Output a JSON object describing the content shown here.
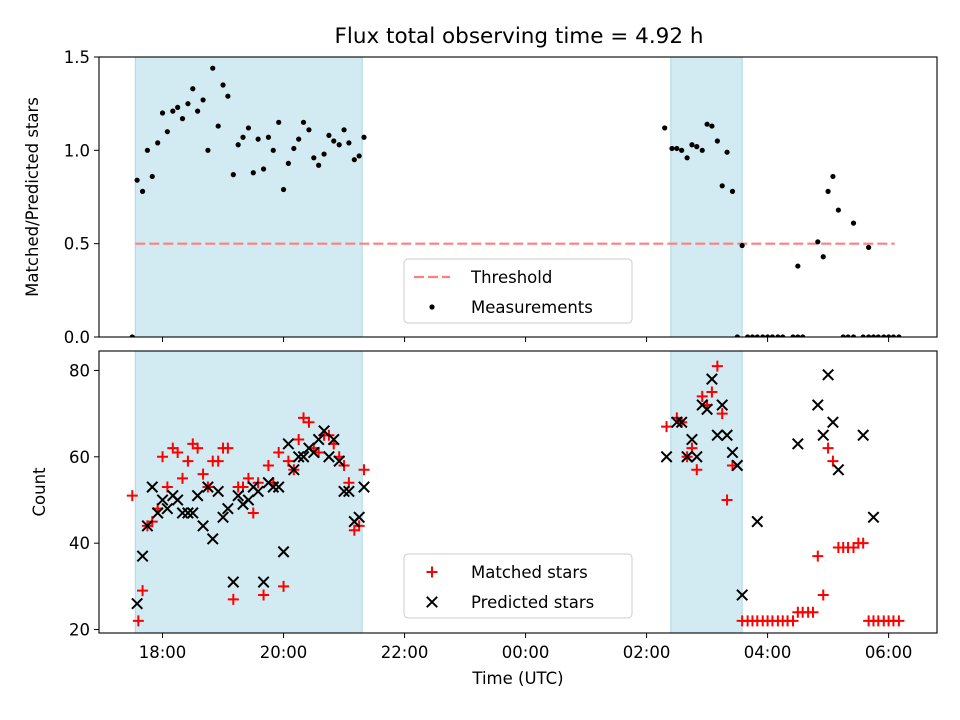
{
  "title": "Flux total observing time = 4.92 h",
  "colors": {
    "shade": "#add8e6",
    "threshold": "#ff7f7f",
    "measurement": "#000000",
    "matched": "#ff0000",
    "predicted": "#000000"
  },
  "chart_data": [
    {
      "type": "scatter",
      "ylabel": "Matched/Predicted stars",
      "xlim": [
        16.95,
        30.8
      ],
      "ylim": [
        0,
        1.5
      ],
      "yticks": [
        0.0,
        0.5,
        1.0,
        1.5
      ],
      "ytick_labels": [
        "0.0",
        "0.5",
        "1.0",
        "1.5"
      ],
      "legend": {
        "placement": "lower center",
        "entries": [
          "Threshold",
          "Measurements"
        ]
      },
      "threshold": {
        "name": "Threshold",
        "value": 0.5,
        "x_range": [
          17.55,
          30.1
        ]
      },
      "shaded_intervals": [
        [
          17.55,
          21.3
        ],
        [
          26.4,
          27.58
        ]
      ],
      "series": [
        {
          "name": "Measurements",
          "points": [
            [
              17.5,
              0.0
            ],
            [
              17.58,
              0.84
            ],
            [
              17.67,
              0.78
            ],
            [
              17.75,
              1.0
            ],
            [
              17.83,
              0.86
            ],
            [
              17.92,
              1.04
            ],
            [
              18.0,
              1.2
            ],
            [
              18.08,
              1.1
            ],
            [
              18.17,
              1.21
            ],
            [
              18.25,
              1.23
            ],
            [
              18.33,
              1.17
            ],
            [
              18.42,
              1.25
            ],
            [
              18.5,
              1.33
            ],
            [
              18.58,
              1.21
            ],
            [
              18.67,
              1.27
            ],
            [
              18.75,
              1.0
            ],
            [
              18.83,
              1.44
            ],
            [
              18.92,
              1.13
            ],
            [
              19.0,
              1.35
            ],
            [
              19.08,
              1.29
            ],
            [
              19.17,
              0.87
            ],
            [
              19.25,
              1.03
            ],
            [
              19.33,
              1.07
            ],
            [
              19.42,
              1.12
            ],
            [
              19.5,
              0.88
            ],
            [
              19.58,
              1.06
            ],
            [
              19.67,
              0.9
            ],
            [
              19.75,
              1.07
            ],
            [
              19.83,
              1.0
            ],
            [
              19.92,
              1.15
            ],
            [
              20.0,
              0.79
            ],
            [
              20.08,
              0.93
            ],
            [
              20.17,
              1.01
            ],
            [
              20.25,
              1.06
            ],
            [
              20.33,
              1.15
            ],
            [
              20.42,
              1.11
            ],
            [
              20.5,
              0.96
            ],
            [
              20.58,
              0.92
            ],
            [
              20.67,
              0.98
            ],
            [
              20.75,
              1.08
            ],
            [
              20.83,
              1.05
            ],
            [
              20.92,
              1.03
            ],
            [
              21.0,
              1.11
            ],
            [
              21.08,
              1.04
            ],
            [
              21.17,
              0.95
            ],
            [
              21.25,
              0.97
            ],
            [
              21.33,
              1.07
            ],
            [
              26.3,
              1.12
            ],
            [
              26.42,
              1.01
            ],
            [
              26.5,
              1.01
            ],
            [
              26.58,
              1.0
            ],
            [
              26.67,
              0.96
            ],
            [
              26.75,
              1.03
            ],
            [
              26.83,
              1.02
            ],
            [
              26.92,
              1.0
            ],
            [
              27.0,
              1.14
            ],
            [
              27.08,
              1.13
            ],
            [
              27.17,
              1.05
            ],
            [
              27.25,
              0.81
            ],
            [
              27.33,
              0.99
            ],
            [
              27.42,
              0.78
            ],
            [
              27.58,
              0.49
            ],
            [
              27.5,
              0.0
            ],
            [
              27.67,
              0.0
            ],
            [
              27.75,
              0.0
            ],
            [
              27.83,
              0.0
            ],
            [
              27.92,
              0.0
            ],
            [
              28.0,
              0.0
            ],
            [
              28.08,
              0.0
            ],
            [
              28.17,
              0.0
            ],
            [
              28.25,
              0.0
            ],
            [
              28.42,
              0.0
            ],
            [
              28.5,
              0.0
            ],
            [
              28.58,
              0.0
            ],
            [
              28.5,
              0.38
            ],
            [
              28.83,
              0.51
            ],
            [
              28.92,
              0.43
            ],
            [
              29.0,
              0.78
            ],
            [
              29.08,
              0.86
            ],
            [
              29.17,
              0.68
            ],
            [
              29.42,
              0.61
            ],
            [
              29.67,
              0.48
            ],
            [
              29.25,
              0.0
            ],
            [
              29.33,
              0.0
            ],
            [
              29.42,
              0.0
            ],
            [
              29.58,
              0.0
            ],
            [
              29.67,
              0.0
            ],
            [
              29.75,
              0.0
            ],
            [
              29.83,
              0.0
            ],
            [
              29.92,
              0.0
            ],
            [
              30.0,
              0.0
            ],
            [
              30.08,
              0.0
            ],
            [
              30.17,
              0.0
            ]
          ]
        }
      ]
    },
    {
      "type": "scatter",
      "xlabel": "Time (UTC)",
      "ylabel": "Count",
      "xlim": [
        16.95,
        30.8
      ],
      "ylim": [
        19.2,
        84.5
      ],
      "xticks": [
        18,
        20,
        22,
        24,
        26,
        28,
        30
      ],
      "xtick_labels": [
        "18:00",
        "20:00",
        "22:00",
        "00:00",
        "02:00",
        "04:00",
        "06:00"
      ],
      "yticks": [
        20,
        40,
        60,
        80
      ],
      "ytick_labels": [
        "20",
        "40",
        "60",
        "80"
      ],
      "legend": {
        "placement": "lower center",
        "entries": [
          "Matched stars",
          "Predicted stars"
        ]
      },
      "shaded_intervals": [
        [
          17.55,
          21.3
        ],
        [
          26.4,
          27.58
        ]
      ],
      "series": [
        {
          "name": "Matched stars",
          "points": [
            [
              17.5,
              51
            ],
            [
              17.6,
              22
            ],
            [
              17.67,
              29
            ],
            [
              17.75,
              44
            ],
            [
              17.83,
              45
            ],
            [
              17.92,
              48
            ],
            [
              18.0,
              60
            ],
            [
              18.08,
              53
            ],
            [
              18.17,
              62
            ],
            [
              18.25,
              61
            ],
            [
              18.33,
              55
            ],
            [
              18.42,
              59
            ],
            [
              18.5,
              63
            ],
            [
              18.58,
              62
            ],
            [
              18.67,
              56
            ],
            [
              18.75,
              53
            ],
            [
              18.83,
              59
            ],
            [
              18.92,
              59
            ],
            [
              19.0,
              62
            ],
            [
              19.08,
              62
            ],
            [
              19.17,
              27
            ],
            [
              19.25,
              53
            ],
            [
              19.33,
              53
            ],
            [
              19.42,
              55
            ],
            [
              19.5,
              47
            ],
            [
              19.58,
              54
            ],
            [
              19.67,
              28
            ],
            [
              19.75,
              58
            ],
            [
              19.83,
              54
            ],
            [
              19.92,
              61
            ],
            [
              20.0,
              30
            ],
            [
              20.08,
              59
            ],
            [
              20.17,
              57
            ],
            [
              20.25,
              64
            ],
            [
              20.33,
              69
            ],
            [
              20.42,
              68
            ],
            [
              20.5,
              62
            ],
            [
              20.58,
              61
            ],
            [
              20.67,
              65
            ],
            [
              20.75,
              65
            ],
            [
              20.83,
              63
            ],
            [
              20.92,
              60
            ],
            [
              21.0,
              58
            ],
            [
              21.08,
              54
            ],
            [
              21.17,
              43
            ],
            [
              21.25,
              44
            ],
            [
              21.33,
              57
            ],
            [
              26.33,
              67
            ],
            [
              26.5,
              69
            ],
            [
              26.58,
              68
            ],
            [
              26.67,
              60
            ],
            [
              26.75,
              62
            ],
            [
              26.83,
              57
            ],
            [
              26.92,
              74
            ],
            [
              27.0,
              72
            ],
            [
              27.08,
              75
            ],
            [
              27.17,
              81
            ],
            [
              27.25,
              70
            ],
            [
              27.33,
              50
            ],
            [
              27.42,
              58
            ],
            [
              27.58,
              22
            ],
            [
              27.67,
              22
            ],
            [
              27.75,
              22
            ],
            [
              27.83,
              22
            ],
            [
              27.92,
              22
            ],
            [
              28.0,
              22
            ],
            [
              28.08,
              22
            ],
            [
              28.17,
              22
            ],
            [
              28.25,
              22
            ],
            [
              28.33,
              22
            ],
            [
              28.42,
              22
            ],
            [
              28.5,
              24
            ],
            [
              28.58,
              24
            ],
            [
              28.67,
              24
            ],
            [
              28.75,
              24
            ],
            [
              28.83,
              37
            ],
            [
              28.92,
              28
            ],
            [
              29.0,
              62
            ],
            [
              29.08,
              59
            ],
            [
              29.17,
              39
            ],
            [
              29.25,
              39
            ],
            [
              29.33,
              39
            ],
            [
              29.42,
              39
            ],
            [
              29.5,
              40
            ],
            [
              29.58,
              40
            ],
            [
              29.67,
              22
            ],
            [
              29.75,
              22
            ],
            [
              29.83,
              22
            ],
            [
              29.92,
              22
            ],
            [
              30.0,
              22
            ],
            [
              30.08,
              22
            ],
            [
              30.17,
              22
            ]
          ]
        },
        {
          "name": "Predicted stars",
          "points": [
            [
              17.58,
              26
            ],
            [
              17.67,
              37
            ],
            [
              17.75,
              44
            ],
            [
              17.83,
              53
            ],
            [
              17.92,
              47
            ],
            [
              18.0,
              50
            ],
            [
              18.08,
              48
            ],
            [
              18.17,
              51
            ],
            [
              18.25,
              50
            ],
            [
              18.33,
              47
            ],
            [
              18.42,
              47
            ],
            [
              18.5,
              47
            ],
            [
              18.58,
              51
            ],
            [
              18.67,
              44
            ],
            [
              18.75,
              53
            ],
            [
              18.83,
              41
            ],
            [
              18.92,
              52
            ],
            [
              19.0,
              46
            ],
            [
              19.08,
              48
            ],
            [
              19.17,
              31
            ],
            [
              19.25,
              51
            ],
            [
              19.33,
              49
            ],
            [
              19.42,
              50
            ],
            [
              19.5,
              53
            ],
            [
              19.58,
              52
            ],
            [
              19.67,
              31
            ],
            [
              19.75,
              54
            ],
            [
              19.83,
              53
            ],
            [
              19.92,
              53
            ],
            [
              20.0,
              38
            ],
            [
              20.08,
              63
            ],
            [
              20.17,
              57
            ],
            [
              20.25,
              60
            ],
            [
              20.33,
              60
            ],
            [
              20.42,
              62
            ],
            [
              20.5,
              61
            ],
            [
              20.58,
              64
            ],
            [
              20.67,
              66
            ],
            [
              20.75,
              60
            ],
            [
              20.83,
              64
            ],
            [
              20.92,
              59
            ],
            [
              21.0,
              52
            ],
            [
              21.08,
              52
            ],
            [
              21.17,
              45
            ],
            [
              21.25,
              46
            ],
            [
              21.33,
              53
            ],
            [
              26.33,
              60
            ],
            [
              26.5,
              68
            ],
            [
              26.58,
              68
            ],
            [
              26.67,
              60
            ],
            [
              26.75,
              64
            ],
            [
              26.83,
              60
            ],
            [
              26.92,
              72
            ],
            [
              27.0,
              71
            ],
            [
              27.08,
              78
            ],
            [
              27.17,
              65
            ],
            [
              27.25,
              72
            ],
            [
              27.33,
              65
            ],
            [
              27.42,
              61
            ],
            [
              27.5,
              58
            ],
            [
              27.58,
              28
            ],
            [
              27.83,
              45
            ],
            [
              28.5,
              63
            ],
            [
              28.83,
              72
            ],
            [
              28.92,
              65
            ],
            [
              29.0,
              79
            ],
            [
              29.08,
              68
            ],
            [
              29.17,
              57
            ],
            [
              29.58,
              65
            ],
            [
              29.75,
              46
            ]
          ]
        }
      ]
    }
  ]
}
